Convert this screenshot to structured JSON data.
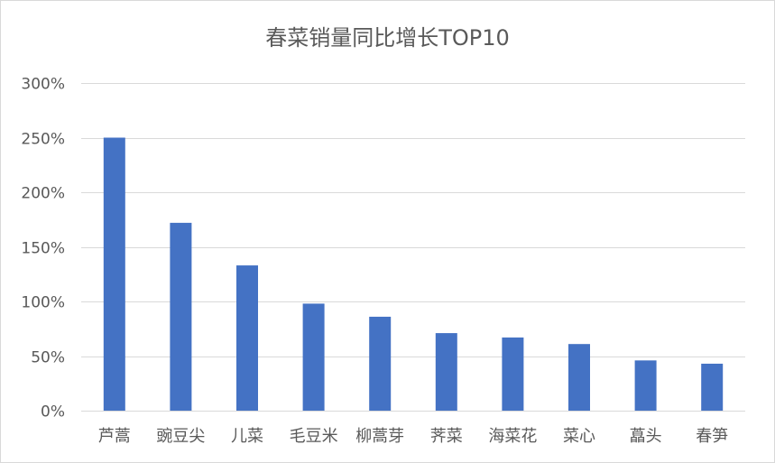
{
  "chart_data": {
    "type": "bar",
    "title": "春菜销量同比增长TOP10",
    "categories": [
      "芦蒿",
      "豌豆尖",
      "儿菜",
      "毛豆米",
      "柳蒿芽",
      "荠菜",
      "海菜花",
      "菜心",
      "藠头",
      "春笋"
    ],
    "values": [
      2.5,
      1.72,
      1.33,
      0.98,
      0.86,
      0.71,
      0.67,
      0.61,
      0.46,
      0.43
    ],
    "ylim": [
      0,
      3
    ],
    "yticks": [
      0,
      0.5,
      1,
      1.5,
      2,
      2.5,
      3
    ],
    "ytick_labels": [
      "0%",
      "50%",
      "100%",
      "150%",
      "200%",
      "250%",
      "300%"
    ],
    "xlabel": "",
    "ylabel": "",
    "grid": true,
    "legend": "none",
    "bar_color": "#4472C4",
    "grid_color": "#d9d9d9"
  }
}
